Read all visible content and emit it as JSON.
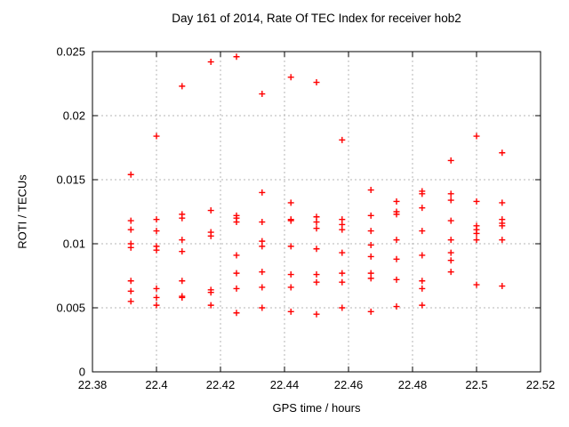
{
  "chart_data": {
    "type": "scatter",
    "title": "Day 161 of 2014, Rate Of TEC Index for receiver hob2",
    "xlabel": "GPS time / hours",
    "ylabel": "ROTI / TECUs",
    "xlim": [
      22.38,
      22.52
    ],
    "ylim": [
      0,
      0.025
    ],
    "grid": true,
    "legend": "none",
    "marker": "plus",
    "marker_color": "#ff0000",
    "grid_color": "#b4b4b4",
    "axis_color": "#000000",
    "xticks": [
      {
        "v": 22.38,
        "label": "22.38"
      },
      {
        "v": 22.4,
        "label": "22.4"
      },
      {
        "v": 22.42,
        "label": "22.42"
      },
      {
        "v": 22.44,
        "label": "22.44"
      },
      {
        "v": 22.46,
        "label": "22.46"
      },
      {
        "v": 22.48,
        "label": "22.48"
      },
      {
        "v": 22.5,
        "label": "22.5"
      },
      {
        "v": 22.52,
        "label": "22.52"
      }
    ],
    "yticks": [
      {
        "v": 0,
        "label": "0"
      },
      {
        "v": 0.005,
        "label": "0.005"
      },
      {
        "v": 0.01,
        "label": "0.01"
      },
      {
        "v": 0.015,
        "label": "0.015"
      },
      {
        "v": 0.02,
        "label": "0.02"
      },
      {
        "v": 0.025,
        "label": "0.025"
      }
    ],
    "series": [
      {
        "name": "ROTI",
        "points": [
          [
            22.392,
            0.0154
          ],
          [
            22.392,
            0.0118
          ],
          [
            22.392,
            0.0111
          ],
          [
            22.392,
            0.01
          ],
          [
            22.392,
            0.0097
          ],
          [
            22.392,
            0.0071
          ],
          [
            22.392,
            0.0063
          ],
          [
            22.392,
            0.0055
          ],
          [
            22.4,
            0.0184
          ],
          [
            22.4,
            0.0119
          ],
          [
            22.4,
            0.011
          ],
          [
            22.4,
            0.0098
          ],
          [
            22.4,
            0.0095
          ],
          [
            22.4,
            0.0065
          ],
          [
            22.4,
            0.0058
          ],
          [
            22.4,
            0.0052
          ],
          [
            22.408,
            0.0223
          ],
          [
            22.408,
            0.0123
          ],
          [
            22.408,
            0.012
          ],
          [
            22.408,
            0.0103
          ],
          [
            22.408,
            0.0094
          ],
          [
            22.408,
            0.0071
          ],
          [
            22.408,
            0.0059
          ],
          [
            22.408,
            0.0058
          ],
          [
            22.417,
            0.0242
          ],
          [
            22.417,
            0.0126
          ],
          [
            22.417,
            0.0109
          ],
          [
            22.417,
            0.0106
          ],
          [
            22.417,
            0.0064
          ],
          [
            22.417,
            0.0062
          ],
          [
            22.417,
            0.0052
          ],
          [
            22.425,
            0.0246
          ],
          [
            22.425,
            0.0122
          ],
          [
            22.425,
            0.012
          ],
          [
            22.425,
            0.0117
          ],
          [
            22.425,
            0.0091
          ],
          [
            22.425,
            0.0077
          ],
          [
            22.425,
            0.0065
          ],
          [
            22.425,
            0.0046
          ],
          [
            22.433,
            0.0217
          ],
          [
            22.433,
            0.014
          ],
          [
            22.433,
            0.0117
          ],
          [
            22.433,
            0.0102
          ],
          [
            22.433,
            0.0098
          ],
          [
            22.433,
            0.0078
          ],
          [
            22.433,
            0.0066
          ],
          [
            22.433,
            0.005
          ],
          [
            22.442,
            0.023
          ],
          [
            22.442,
            0.0132
          ],
          [
            22.442,
            0.0119
          ],
          [
            22.442,
            0.0118
          ],
          [
            22.442,
            0.0098
          ],
          [
            22.442,
            0.0076
          ],
          [
            22.442,
            0.0066
          ],
          [
            22.442,
            0.0047
          ],
          [
            22.45,
            0.0226
          ],
          [
            22.45,
            0.0121
          ],
          [
            22.45,
            0.0117
          ],
          [
            22.45,
            0.0112
          ],
          [
            22.45,
            0.0096
          ],
          [
            22.45,
            0.0076
          ],
          [
            22.45,
            0.007
          ],
          [
            22.45,
            0.0045
          ],
          [
            22.458,
            0.0181
          ],
          [
            22.458,
            0.0119
          ],
          [
            22.458,
            0.0115
          ],
          [
            22.458,
            0.0111
          ],
          [
            22.458,
            0.0093
          ],
          [
            22.458,
            0.0077
          ],
          [
            22.458,
            0.007
          ],
          [
            22.458,
            0.005
          ],
          [
            22.467,
            0.0142
          ],
          [
            22.467,
            0.0122
          ],
          [
            22.467,
            0.011
          ],
          [
            22.467,
            0.0099
          ],
          [
            22.467,
            0.009
          ],
          [
            22.467,
            0.0077
          ],
          [
            22.467,
            0.0073
          ],
          [
            22.467,
            0.0047
          ],
          [
            22.475,
            0.0133
          ],
          [
            22.475,
            0.0125
          ],
          [
            22.475,
            0.0123
          ],
          [
            22.475,
            0.0103
          ],
          [
            22.475,
            0.0088
          ],
          [
            22.475,
            0.0072
          ],
          [
            22.475,
            0.0051
          ],
          [
            22.483,
            0.0141
          ],
          [
            22.483,
            0.0139
          ],
          [
            22.483,
            0.0128
          ],
          [
            22.483,
            0.011
          ],
          [
            22.483,
            0.0091
          ],
          [
            22.483,
            0.0071
          ],
          [
            22.483,
            0.0065
          ],
          [
            22.483,
            0.0052
          ],
          [
            22.492,
            0.0165
          ],
          [
            22.492,
            0.0139
          ],
          [
            22.492,
            0.0134
          ],
          [
            22.492,
            0.0118
          ],
          [
            22.492,
            0.0103
          ],
          [
            22.492,
            0.0093
          ],
          [
            22.492,
            0.0087
          ],
          [
            22.492,
            0.0078
          ],
          [
            22.5,
            0.0184
          ],
          [
            22.5,
            0.0133
          ],
          [
            22.5,
            0.0114
          ],
          [
            22.5,
            0.0111
          ],
          [
            22.5,
            0.0108
          ],
          [
            22.5,
            0.0103
          ],
          [
            22.5,
            0.0068
          ],
          [
            22.508,
            0.0171
          ],
          [
            22.508,
            0.0132
          ],
          [
            22.508,
            0.0119
          ],
          [
            22.508,
            0.0116
          ],
          [
            22.508,
            0.0114
          ],
          [
            22.508,
            0.0103
          ],
          [
            22.508,
            0.0067
          ]
        ]
      }
    ]
  }
}
